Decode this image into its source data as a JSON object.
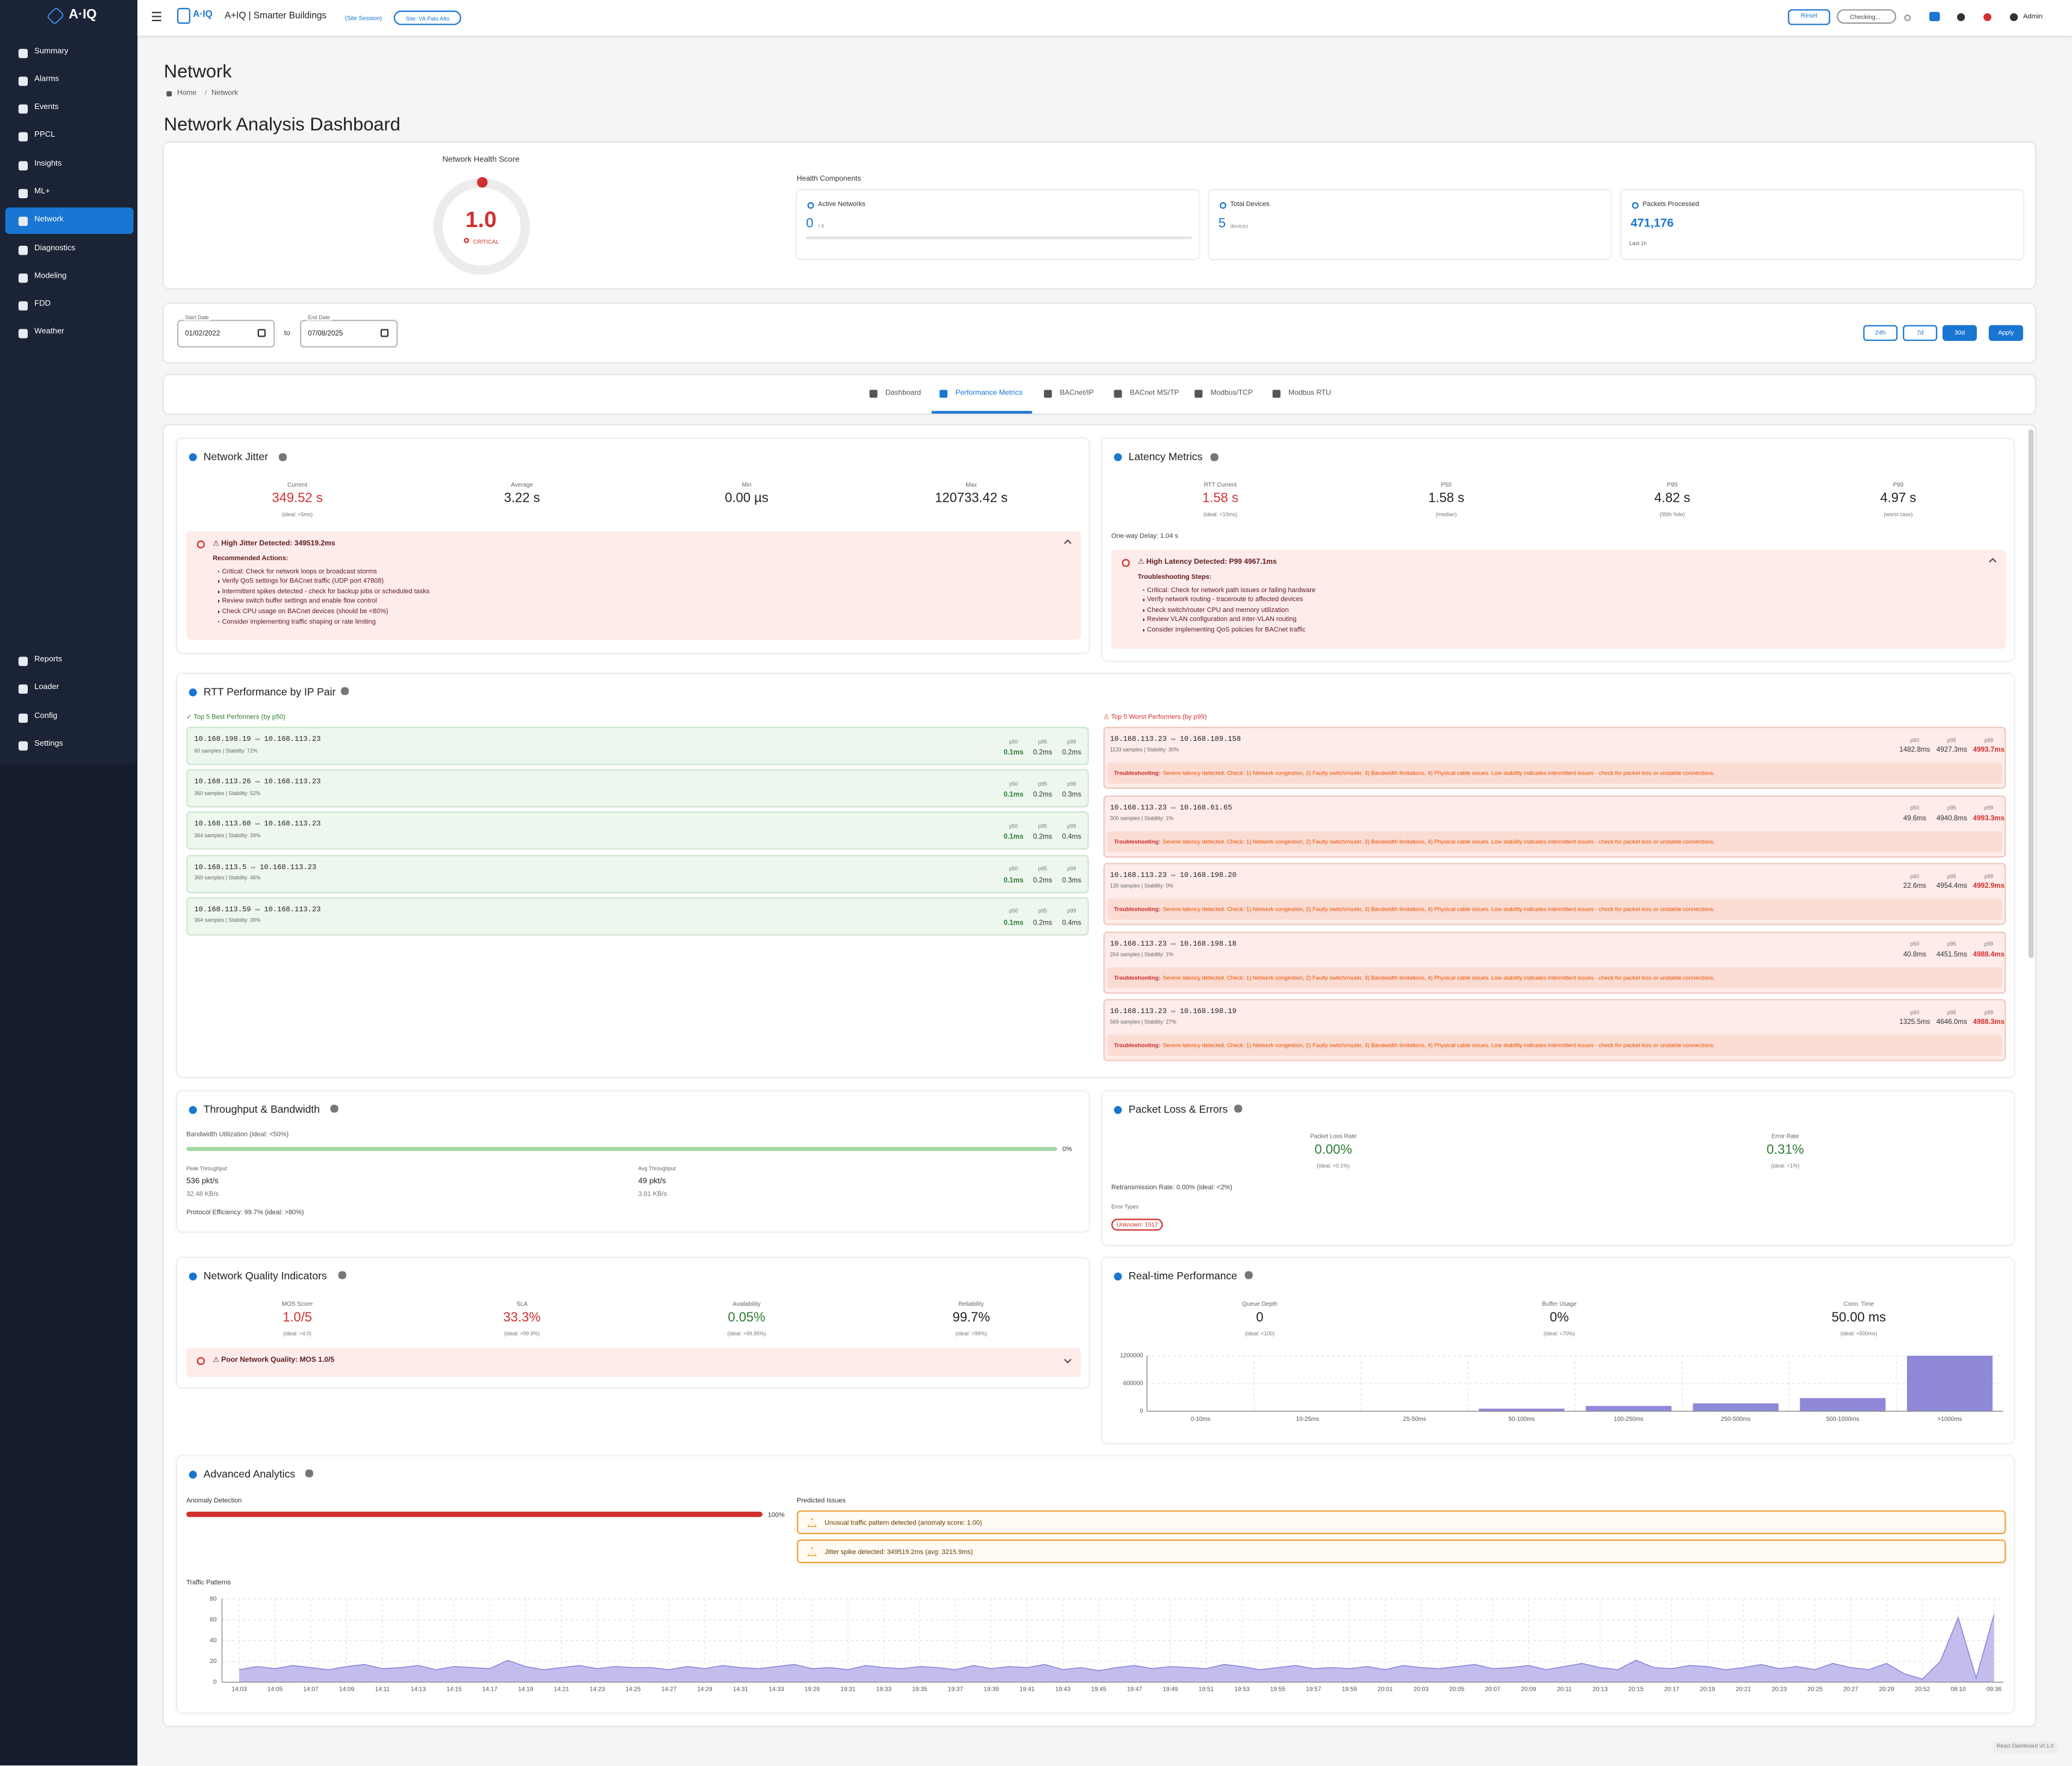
{
  "sidebar": {
    "logo": "A·IQ",
    "nav": [
      "Summary",
      "Alarms",
      "Events",
      "PPCL",
      "Insights",
      "ML+",
      "Network",
      "Diagnostics",
      "Modeling",
      "FDD",
      "Weather"
    ],
    "active": 6,
    "bottom_nav": [
      "Reports",
      "Loader",
      "Config",
      "Settings"
    ]
  },
  "header": {
    "brand": "A+IQ | Smarter Buildings",
    "session": "(Site Session)",
    "site": "Site: VA Palo Alto",
    "reset": "Reset",
    "status": "Checking...",
    "user": "Admin"
  },
  "page": {
    "title": "Network",
    "breadcrumb": [
      "Home",
      "Network"
    ],
    "separator": "/",
    "heading": "Network Analysis Dashboard"
  },
  "health": {
    "label": "Network Health Score",
    "score": "1.0",
    "status": "CRITICAL",
    "components_label": "Health Components",
    "components": [
      {
        "label": "Active Networks",
        "value": "0",
        "unit": "/ 4"
      },
      {
        "label": "Total Devices",
        "value": "5",
        "unit": "devices"
      },
      {
        "label": "Packets Processed",
        "value": "471,176",
        "note": "Last 1h"
      }
    ]
  },
  "dates": {
    "start_label": "Start Date",
    "start": "01/02/2022",
    "to": "to",
    "end_label": "End Date",
    "end": "07/08/2025",
    "ranges": [
      "24h",
      "7d",
      "30d"
    ],
    "active_range": 2,
    "apply": "Apply"
  },
  "tabs": {
    "items": [
      "Dashboard",
      "Performance Metrics",
      "BACnet/IP",
      "BACnet MS/TP",
      "Modbus/TCP",
      "Modbus RTU"
    ],
    "active": 1
  },
  "jitter": {
    "title": "Network Jitter",
    "metrics": [
      {
        "label": "Current",
        "value": "349.52 s",
        "note": "(ideal: <5ms)",
        "color": "#d32f2f"
      },
      {
        "label": "Average",
        "value": "3.22 s"
      },
      {
        "label": "Min",
        "value": "0.00 µs"
      },
      {
        "label": "Max",
        "value": "120733.42 s"
      }
    ],
    "alert": {
      "title": "⚠ High Jitter Detected: 349519.2ms",
      "subtitle": "Recommended Actions:",
      "items": [
        "Critical: Check for network loops or broadcast storms",
        "Verify QoS settings for BACnet traffic (UDP port 47808)",
        "Intermittent spikes detected - check for backup jobs or scheduled tasks",
        "Review switch buffer settings and enable flow control",
        "Check CPU usage on BACnet devices (should be <80%)",
        "Consider implementing traffic shaping or rate limiting"
      ]
    }
  },
  "latency": {
    "title": "Latency Metrics",
    "metrics": [
      {
        "label": "RTT Current",
        "value": "1.58 s",
        "note": "(ideal: <10ms)",
        "color": "#d32f2f"
      },
      {
        "label": "P50",
        "value": "1.58 s",
        "note": "(median)"
      },
      {
        "label": "P95",
        "value": "4.82 s",
        "note": "(95th %ile)"
      },
      {
        "label": "P99",
        "value": "4.97 s",
        "note": "(worst case)"
      }
    ],
    "one_way": "One-way Delay: 1.04 s",
    "alert": {
      "title": "⚠ High Latency Detected: P99 4967.1ms",
      "subtitle": "Troubleshooting Steps:",
      "items": [
        "Critical: Check for network path issues or failing hardware",
        "Verify network routing - traceroute to affected devices",
        "Check switch/router CPU and memory utilization",
        "Review VLAN configuration and inter-VLAN routing",
        "Consider implementing QoS policies for BACnet traffic"
      ]
    }
  },
  "rtt": {
    "title": "RTT Performance by IP Pair",
    "columns": [
      "p50",
      "p95",
      "p99"
    ],
    "best": {
      "heading": "✓ Top 5 Best Performers (by p50)",
      "rows": [
        {
          "pair": "10.168.198.19 ⇔ 10.168.113.23",
          "info": "60 samples | Stability: 72%",
          "p50": "0.1ms",
          "p95": "0.2ms",
          "p99": "0.2ms"
        },
        {
          "pair": "10.168.113.26 ⇔ 10.168.113.23",
          "info": "360 samples | Stability: 52%",
          "p50": "0.1ms",
          "p95": "0.2ms",
          "p99": "0.3ms"
        },
        {
          "pair": "10.168.113.60 ⇔ 10.168.113.23",
          "info": "364 samples | Stability: 39%",
          "p50": "0.1ms",
          "p95": "0.2ms",
          "p99": "0.4ms"
        },
        {
          "pair": "10.168.113.5 ⇔ 10.168.113.23",
          "info": "360 samples | Stability: 46%",
          "p50": "0.1ms",
          "p95": "0.2ms",
          "p99": "0.3ms"
        },
        {
          "pair": "10.168.113.59 ⇔ 10.168.113.23",
          "info": "364 samples | Stability: 39%",
          "p50": "0.1ms",
          "p95": "0.2ms",
          "p99": "0.4ms"
        }
      ]
    },
    "worst": {
      "heading": "⚠ Top 5 Worst Performers (by p99)",
      "rows": [
        {
          "pair": "10.168.113.23 ⇔ 10.168.189.158",
          "info": "1133 samples | Stability: 30%",
          "p50": "1482.8ms",
          "p95": "4927.3ms",
          "p99": "4993.7ms",
          "label": "Troubleshooting:",
          "text": "Severe latency detected. Check: 1) Network congestion, 2) Faulty switch/router, 3) Bandwidth limitations, 4) Physical cable issues. Low stability indicates intermittent issues - check for packet loss or unstable connections."
        },
        {
          "pair": "10.168.113.23 ⇔ 10.168.61.65",
          "info": "300 samples | Stability: 1%",
          "p50": "49.6ms",
          "p95": "4940.8ms",
          "p99": "4993.3ms",
          "label": "Troubleshooting:",
          "text": "Severe latency detected. Check: 1) Network congestion, 2) Faulty switch/router, 3) Bandwidth limitations, 4) Physical cable issues. Low stability indicates intermittent issues - check for packet loss or unstable connections."
        },
        {
          "pair": "10.168.113.23 ⇔ 10.168.198.20",
          "info": "130 samples | Stability: 0%",
          "p50": "22.6ms",
          "p95": "4954.4ms",
          "p99": "4992.9ms",
          "label": "Troubleshooting:",
          "text": "Severe latency detected. Check: 1) Network congestion, 2) Faulty switch/router, 3) Bandwidth limitations, 4) Physical cable issues. Low stability indicates intermittent issues - check for packet loss or unstable connections."
        },
        {
          "pair": "10.168.113.23 ⇔ 10.168.198.18",
          "info": "264 samples | Stability: 1%",
          "p50": "40.8ms",
          "p95": "4451.5ms",
          "p99": "4988.4ms",
          "label": "Troubleshooting:",
          "text": "Severe latency detected. Check: 1) Network congestion, 2) Faulty switch/router, 3) Bandwidth limitations, 4) Physical cable issues. Low stability indicates intermittent issues - check for packet loss or unstable connections."
        },
        {
          "pair": "10.168.113.23 ⇔ 10.168.198.19",
          "info": "569 samples | Stability: 27%",
          "p50": "1325.5ms",
          "p95": "4646.0ms",
          "p99": "4988.3ms",
          "label": "Troubleshooting:",
          "text": "Severe latency detected. Check: 1) Network congestion, 2) Faulty switch/router, 3) Bandwidth limitations, 4) Physical cable issues. Low stability indicates intermittent issues - check for packet loss or unstable connections."
        }
      ]
    }
  },
  "throughput": {
    "title": "Throughput & Bandwidth",
    "utilization_label": "Bandwidth Utilization (ideal: <50%)",
    "utilization": "0%",
    "peak_label": "Peak Throughput",
    "peak": "536 pkt/s",
    "peak_rate": "32.48 KB/s",
    "avg_label": "Avg Throughput",
    "avg": "49 pkt/s",
    "avg_rate": "3.81 KB/s",
    "efficiency": "Protocol Efficiency: 99.7% (ideal: >80%)"
  },
  "packets": {
    "title": "Packet Loss & Errors",
    "metrics": [
      {
        "label": "Packet Loss Rate",
        "value": "0.00%",
        "note": "(ideal: <0.1%)",
        "color": "#2e7d32"
      },
      {
        "label": "Error Rate",
        "value": "0.31%",
        "note": "(ideal: <1%)",
        "color": "#2e7d32"
      }
    ],
    "retransmission": "Retransmission Rate: 0.00% (ideal: <2%)",
    "error_types_label": "Error Types",
    "error_types": [
      "Unknown: 1517"
    ]
  },
  "quality": {
    "title": "Network Quality Indicators",
    "metrics": [
      {
        "label": "MOS Score",
        "value": "1.0/5",
        "note": "(ideal: >4.0)",
        "color": "#d32f2f"
      },
      {
        "label": "SLA",
        "value": "33.3%",
        "note": "(ideal: >99.9%)",
        "color": "#d32f2f"
      },
      {
        "label": "Availability",
        "value": "0.05%",
        "note": "(ideal: >99.95%)",
        "color": "#2e7d32"
      },
      {
        "label": "Reliability",
        "value": "99.7%",
        "note": "(ideal: >99%)"
      }
    ],
    "alert": {
      "title": "⚠ Poor Network Quality: MOS 1.0/5"
    }
  },
  "realtime": {
    "title": "Real-time Performance",
    "metrics": [
      {
        "label": "Queue Depth",
        "value": "0",
        "note": "(ideal: <100)"
      },
      {
        "label": "Buffer Usage",
        "value": "0%",
        "note": "(ideal: <70%)"
      },
      {
        "label": "Conn. Time",
        "value": "50.00 ms",
        "note": "(ideal: <500ms)"
      }
    ],
    "chart_data": {
      "type": "bar",
      "categories": [
        "0-10ms",
        "10-25ms",
        "25-50ms",
        "50-100ms",
        "100-250ms",
        "250-500ms",
        "500-1000ms",
        ">1000ms"
      ],
      "values": [
        5000,
        2000,
        3000,
        57000,
        115000,
        170000,
        285000,
        1200000
      ],
      "color": "#8f88d9",
      "ylim": [
        0,
        1200000
      ],
      "yticks": [
        0,
        600000,
        1200000
      ],
      "grid": true
    }
  },
  "advanced": {
    "title": "Advanced Analytics",
    "anomaly_label": "Anomaly Detection",
    "anomaly": "100%",
    "predicted_label": "Predicted Issues",
    "predicted": [
      "Unusual traffic pattern detected (anomaly score: 1.00)",
      "Jitter spike detected: 349519.2ms (avg: 3215.9ms)"
    ],
    "traffic_label": "Traffic Patterns",
    "chart_data": {
      "type": "area",
      "color": "#8a84d6",
      "fill": "#b7b2ea",
      "ylim": [
        0,
        80
      ],
      "yticks": [
        0,
        20,
        40,
        60,
        80
      ],
      "grid": true,
      "categories": [
        "14:03",
        null,
        "14:05",
        null,
        "14:07",
        null,
        "14:09",
        null,
        "14:11",
        null,
        "14:13",
        null,
        "14:15",
        null,
        "14:17",
        null,
        "14:19",
        null,
        "14:21",
        null,
        "14:23",
        null,
        "14:25",
        null,
        "14:27",
        null,
        "14:29",
        null,
        "14:31",
        null,
        "14:33",
        null,
        "19:29",
        null,
        "19:31",
        null,
        "19:33",
        null,
        "19:35",
        null,
        "19:37",
        null,
        "19:39",
        null,
        "19:41",
        null,
        "19:43",
        null,
        "19:45",
        null,
        "19:47",
        null,
        "19:49",
        null,
        "19:51",
        null,
        "19:53",
        null,
        "19:55",
        null,
        "19:57",
        null,
        "19:59",
        null,
        "20:01",
        null,
        "20:03",
        null,
        "20:05",
        null,
        "20:07",
        null,
        "20:09",
        null,
        "20:11",
        null,
        "20:13",
        null,
        "20:15",
        null,
        "20:17",
        null,
        "20:19",
        null,
        "20:21",
        null,
        "20:23",
        null,
        "20:25",
        null,
        "20:27",
        null,
        "20:29",
        null,
        "20:52",
        null,
        "08:10",
        null,
        "09:36"
      ],
      "values": [
        12,
        15,
        13,
        16,
        14,
        12,
        15,
        17,
        13,
        14,
        16,
        12,
        15,
        14,
        13,
        21,
        15,
        12,
        14,
        16,
        13,
        15,
        14,
        14,
        12,
        15,
        13,
        16,
        14,
        13,
        15,
        17,
        13,
        14,
        12,
        16,
        14,
        13,
        15,
        14,
        12,
        16,
        13,
        15,
        14,
        17,
        12,
        14,
        11,
        14,
        16,
        13,
        15,
        14,
        13,
        17,
        15,
        12,
        14,
        16,
        13,
        14,
        13,
        15,
        12,
        16,
        14,
        13,
        15,
        17,
        13,
        14,
        16,
        12,
        15,
        18,
        14,
        12,
        21,
        14,
        13,
        16,
        15,
        12,
        14,
        17,
        13,
        15,
        12,
        18,
        14,
        12,
        18,
        8,
        3,
        20,
        62,
        4,
        65
      ]
    }
  },
  "footer": "React Dashboard v0.1.0"
}
